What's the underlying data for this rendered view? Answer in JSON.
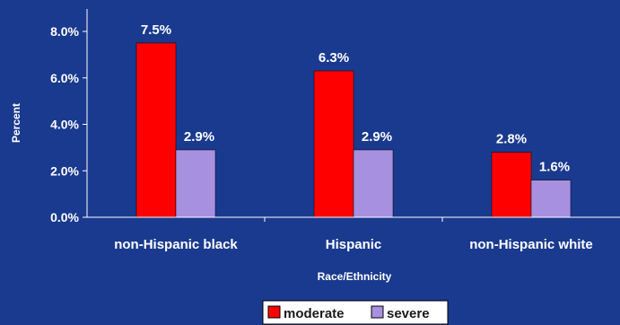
{
  "chart_data": {
    "type": "bar",
    "title": "",
    "xlabel": "Race/Ethnicity",
    "ylabel": "Percent",
    "categories": [
      "non-Hispanic black",
      "Hispanic",
      "non-Hispanic white"
    ],
    "series": [
      {
        "name": "moderate",
        "values": [
          7.5,
          6.3,
          2.8
        ],
        "labels": [
          "7.5%",
          "6.3%",
          "2.8%"
        ],
        "color": "#ff0000"
      },
      {
        "name": "severe",
        "values": [
          2.9,
          2.9,
          1.6
        ],
        "labels": [
          "2.9%",
          "2.9%",
          "1.6%"
        ],
        "color": "#a890e0"
      }
    ],
    "ylim": [
      0,
      8
    ],
    "yticks": [
      0,
      2,
      4,
      6,
      8
    ],
    "ytick_labels": [
      "0.0%",
      "2.0%",
      "4.0%",
      "6.0%",
      "8.0%"
    ],
    "grid": false,
    "legend": "bottom-center",
    "background": "#1a3a8f"
  }
}
